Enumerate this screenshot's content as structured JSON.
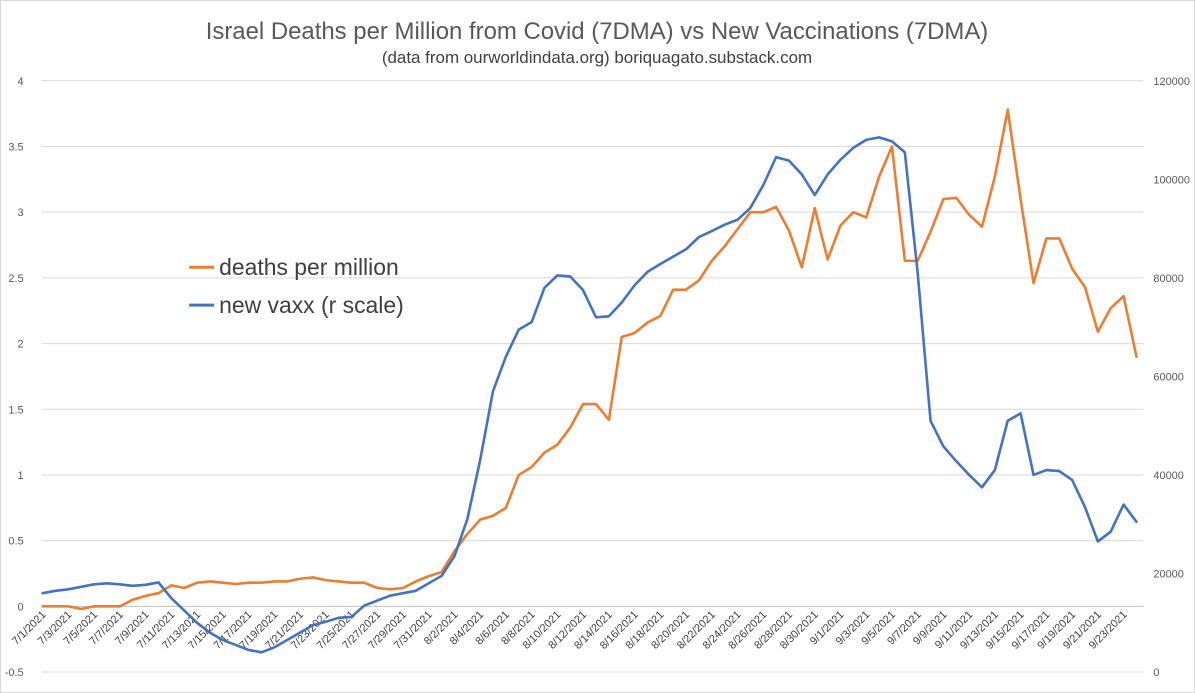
{
  "chart_data": {
    "type": "line",
    "title": "Israel Deaths per Million from Covid (7DMA) vs New Vaccinations (7DMA)",
    "subtitle": "(data from ourworldindata.org)  boriquagato.substack.com",
    "dates": [
      "7/1/2021",
      "7/2/2021",
      "7/3/2021",
      "7/4/2021",
      "7/5/2021",
      "7/6/2021",
      "7/7/2021",
      "7/8/2021",
      "7/9/2021",
      "7/10/2021",
      "7/11/2021",
      "7/12/2021",
      "7/13/2021",
      "7/14/2021",
      "7/15/2021",
      "7/16/2021",
      "7/17/2021",
      "7/18/2021",
      "7/19/2021",
      "7/20/2021",
      "7/21/2021",
      "7/22/2021",
      "7/23/2021",
      "7/24/2021",
      "7/25/2021",
      "7/26/2021",
      "7/27/2021",
      "7/28/2021",
      "7/29/2021",
      "7/30/2021",
      "7/31/2021",
      "8/1/2021",
      "8/2/2021",
      "8/3/2021",
      "8/4/2021",
      "8/5/2021",
      "8/6/2021",
      "8/7/2021",
      "8/8/2021",
      "8/9/2021",
      "8/10/2021",
      "8/11/2021",
      "8/12/2021",
      "8/13/2021",
      "8/14/2021",
      "8/15/2021",
      "8/16/2021",
      "8/17/2021",
      "8/18/2021",
      "8/19/2021",
      "8/20/2021",
      "8/21/2021",
      "8/22/2021",
      "8/23/2021",
      "8/24/2021",
      "8/25/2021",
      "8/26/2021",
      "8/27/2021",
      "8/28/2021",
      "8/29/2021",
      "8/30/2021",
      "8/31/2021",
      "9/1/2021",
      "9/2/2021",
      "9/3/2021",
      "9/4/2021",
      "9/5/2021",
      "9/6/2021",
      "9/7/2021",
      "9/8/2021",
      "9/9/2021",
      "9/10/2021",
      "9/11/2021",
      "9/12/2021",
      "9/13/2021",
      "9/14/2021",
      "9/15/2021",
      "9/16/2021",
      "9/17/2021",
      "9/18/2021",
      "9/19/2021",
      "9/20/2021",
      "9/21/2021",
      "9/22/2021",
      "9/23/2021",
      "9/24/2021"
    ],
    "series": [
      {
        "name": "deaths per million",
        "axis": "left",
        "color": "#ed7d31",
        "values": [
          0.0,
          0.0,
          0.0,
          -0.02,
          0.0,
          0.0,
          0.0,
          0.05,
          0.08,
          0.1,
          0.16,
          0.14,
          0.18,
          0.19,
          0.18,
          0.17,
          0.18,
          0.18,
          0.19,
          0.19,
          0.21,
          0.22,
          0.2,
          0.19,
          0.18,
          0.18,
          0.14,
          0.13,
          0.14,
          0.19,
          0.23,
          0.26,
          0.42,
          0.55,
          0.66,
          0.69,
          0.75,
          1.0,
          1.06,
          1.17,
          1.23,
          1.36,
          1.54,
          1.54,
          1.42,
          2.05,
          2.08,
          2.16,
          2.21,
          2.41,
          2.41,
          2.48,
          2.63,
          2.74,
          2.87,
          3.0,
          3.0,
          3.04,
          2.86,
          2.58,
          3.03,
          2.64,
          2.9,
          3.0,
          2.96,
          3.27,
          3.5,
          2.63,
          2.63,
          2.85,
          3.1,
          3.11,
          2.98,
          2.89,
          3.27,
          3.78,
          3.1,
          2.46,
          2.8,
          2.8,
          2.57,
          2.43,
          2.09,
          2.27,
          2.36,
          1.9
        ]
      },
      {
        "name": "new vaxx (r scale)",
        "axis": "right",
        "color": "#4472c4",
        "values": [
          16000,
          16500,
          16800,
          17300,
          17800,
          18000,
          17800,
          17500,
          17700,
          18200,
          15000,
          12500,
          10000,
          8000,
          6500,
          5500,
          4500,
          4000,
          5000,
          6500,
          8000,
          9500,
          10200,
          11000,
          11200,
          13500,
          14500,
          15500,
          16000,
          16500,
          18000,
          19500,
          23500,
          31000,
          43000,
          57000,
          64000,
          69500,
          71000,
          78000,
          80500,
          80300,
          77500,
          72000,
          72200,
          75000,
          78500,
          81200,
          82800,
          84300,
          85800,
          88300,
          89500,
          90800,
          91800,
          94200,
          98800,
          104500,
          103800,
          101000,
          96800,
          101000,
          104000,
          106400,
          108000,
          108500,
          107700,
          105500,
          81000,
          51000,
          45800,
          42800,
          40000,
          37500,
          41000,
          51000,
          52500,
          40000,
          41000,
          40800,
          39000,
          33500,
          26500,
          28500,
          34000,
          30500
        ]
      }
    ],
    "y_left": {
      "min": -0.5,
      "max": 4,
      "ticks": [
        -0.5,
        0,
        0.5,
        1,
        1.5,
        2,
        2.5,
        3,
        3.5,
        4
      ],
      "labels": [
        "-0.5",
        "0",
        "0.5",
        "1",
        "1.5",
        "2",
        "2.5",
        "3",
        "3.5",
        "4"
      ]
    },
    "y_right": {
      "min": 0,
      "max": 120000,
      "ticks": [
        0,
        20000,
        40000,
        60000,
        80000,
        100000,
        120000
      ],
      "labels": [
        "0",
        "20000",
        "40000",
        "60000",
        "80000",
        "100000",
        "120000"
      ]
    },
    "x_tick_labels": [
      "7/1/2021",
      "7/3/2021",
      "7/5/2021",
      "7/7/2021",
      "7/9/2021",
      "7/11/2021",
      "7/13/2021",
      "7/15/2021",
      "7/17/2021",
      "7/19/2021",
      "7/21/2021",
      "7/23/2021",
      "7/25/2021",
      "7/27/2021",
      "7/29/2021",
      "7/31/2021",
      "8/2/2021",
      "8/4/2021",
      "8/6/2021",
      "8/8/2021",
      "8/10/2021",
      "8/12/2021",
      "8/14/2021",
      "8/16/2021",
      "8/18/2021",
      "8/20/2021",
      "8/22/2021",
      "8/24/2021",
      "8/26/2021",
      "8/28/2021",
      "8/30/2021",
      "9/1/2021",
      "9/3/2021",
      "9/5/2021",
      "9/7/2021",
      "9/9/2021",
      "9/11/2021",
      "9/13/2021",
      "9/15/2021",
      "9/17/2021",
      "9/19/2021",
      "9/21/2021",
      "9/23/2021"
    ],
    "legend": {
      "position": "center-left",
      "entries": [
        "deaths per million",
        "new vaxx (r scale)"
      ]
    },
    "gridlines": true
  }
}
